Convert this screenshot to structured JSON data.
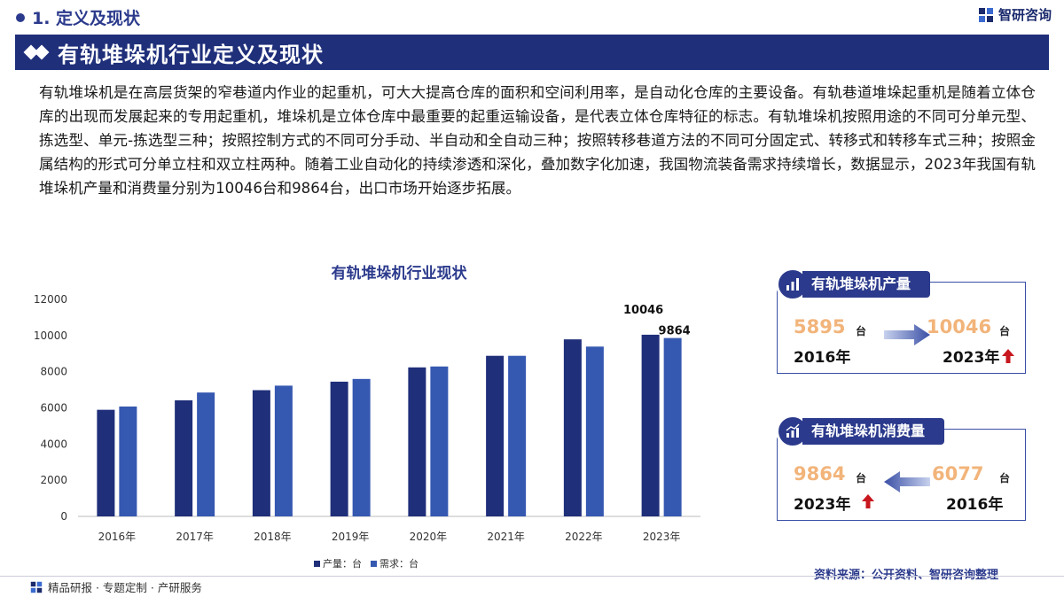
{
  "header": {
    "section": "1. 定义及现状",
    "brand": "智研咨询",
    "title": "有轨堆垛机行业定义及现状"
  },
  "intro": "有轨堆垛机是在高层货架的窄巷道内作业的起重机，可大大提高仓库的面积和空间利用率，是自动化仓库的主要设备。有轨巷道堆垛起重机是随着立体仓库的出现而发展起来的专用起重机，堆垛机是立体仓库中最重要的起重运输设备，是代表立体仓库特征的标志。有轨堆垛机按照用途的不同可分单元型、拣选型、单元-拣选型三种；按照控制方式的不同可分手动、半自动和全自动三种；按照转移巷道方法的不同可分固定式、转移式和转移车式三种；按照金属结构的形式可分单立柱和双立柱两种。随着工业自动化的持续渗透和深化，叠加数字化加速，我国物流装备需求持续增长，数据显示，2023年我国有轨堆垛机产量和消费量分别为10046台和9864台，出口市场开始逐步拓展。",
  "chart_data": {
    "type": "bar",
    "title": "有轨堆垛机行业现状",
    "categories": [
      "2016年",
      "2017年",
      "2018年",
      "2019年",
      "2020年",
      "2021年",
      "2022年",
      "2023年"
    ],
    "series": [
      {
        "name": "产量：台",
        "color": "#1f2f7a",
        "values": [
          5895,
          6420,
          6980,
          7450,
          8240,
          8880,
          9790,
          10046
        ]
      },
      {
        "name": "需求：台",
        "color": "#3558b0",
        "values": [
          6077,
          6850,
          7230,
          7600,
          8290,
          8880,
          9390,
          9864
        ]
      }
    ],
    "ylim": [
      0,
      12000
    ],
    "yticks": [
      0,
      2000,
      4000,
      6000,
      8000,
      10000,
      12000
    ],
    "data_labels": [
      {
        "category": "2023年",
        "series": 0,
        "text": "10046"
      },
      {
        "category": "2023年",
        "series": 1,
        "text": "9864"
      }
    ],
    "grid": false,
    "legend_position": "bottom"
  },
  "cards": {
    "production": {
      "title": "有轨堆垛机产量",
      "left_value": "5895",
      "left_unit": "台",
      "left_year": "2016年",
      "right_value": "10046",
      "right_unit": "台",
      "right_year": "2023年"
    },
    "consumption": {
      "title": "有轨堆垛机消费量",
      "left_value": "9864",
      "left_unit": "台",
      "left_year": "2023年",
      "right_value": "6077",
      "right_unit": "台",
      "right_year": "2016年"
    }
  },
  "source": "资料来源：公开资料、智研咨询整理",
  "footer": "精品研报 · 专题定制 · 产研服务",
  "colors": {
    "primary": "#1f2f7a",
    "accent": "#f2b47a",
    "up_arrow": "#c8171e"
  }
}
